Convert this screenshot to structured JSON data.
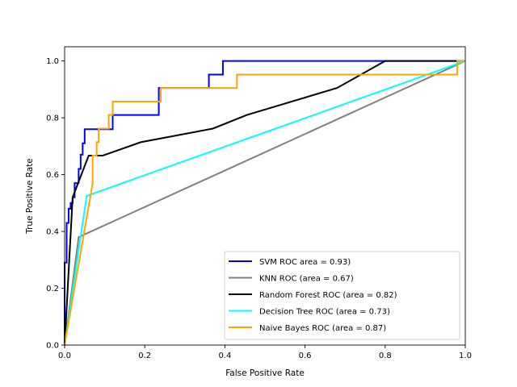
{
  "chart_data": {
    "type": "line",
    "xlabel": "False Positive Rate",
    "ylabel": "True Positive Rate",
    "xlim": [
      0.0,
      1.0
    ],
    "ylim": [
      0.0,
      1.05
    ],
    "xticks": [
      "0.0",
      "0.2",
      "0.4",
      "0.6",
      "0.8",
      "1.0"
    ],
    "yticks": [
      "0.0",
      "0.2",
      "0.4",
      "0.6",
      "0.8",
      "1.0"
    ],
    "grid": false,
    "legend_position": "lower-right",
    "series": [
      {
        "name": "SVM ROC area = 0.93)",
        "color": "#0000ff",
        "x": [
          0.0,
          0.0,
          0.005,
          0.005,
          0.01,
          0.01,
          0.015,
          0.015,
          0.02,
          0.02,
          0.025,
          0.025,
          0.035,
          0.035,
          0.04,
          0.04,
          0.045,
          0.045,
          0.05,
          0.05,
          0.12,
          0.12,
          0.235,
          0.235,
          0.36,
          0.36,
          0.395,
          0.395,
          1.0
        ],
        "y": [
          0.0,
          0.29,
          0.29,
          0.43,
          0.43,
          0.48,
          0.48,
          0.5,
          0.5,
          0.52,
          0.52,
          0.57,
          0.57,
          0.62,
          0.62,
          0.67,
          0.67,
          0.71,
          0.71,
          0.76,
          0.76,
          0.81,
          0.81,
          0.905,
          0.905,
          0.952,
          0.952,
          1.0,
          1.0
        ]
      },
      {
        "name": "KNN ROC (area = 0.67)",
        "color": "#808080",
        "x": [
          0.0,
          0.035,
          1.0
        ],
        "y": [
          0.0,
          0.38,
          1.0
        ]
      },
      {
        "name": "Random Forest ROC  (area = 0.82)",
        "color": "#000000",
        "x": [
          0.0,
          0.02,
          0.06,
          0.095,
          0.19,
          0.37,
          0.455,
          0.68,
          0.8,
          1.0
        ],
        "y": [
          0.0,
          0.52,
          0.667,
          0.667,
          0.714,
          0.762,
          0.81,
          0.905,
          1.0,
          1.0
        ]
      },
      {
        "name": "Decision Tree ROC (area = 0.73)",
        "color": "#00ffff",
        "x": [
          0.0,
          0.055,
          1.0
        ],
        "y": [
          0.0,
          0.525,
          1.0
        ]
      },
      {
        "name": "Naive Bayes ROC (area = 0.87)",
        "color": "#ffa500",
        "x": [
          0.0,
          0.07,
          0.07,
          0.08,
          0.08,
          0.085,
          0.085,
          0.11,
          0.11,
          0.12,
          0.12,
          0.24,
          0.24,
          0.255,
          0.255,
          0.43,
          0.43,
          0.98,
          0.98,
          1.0
        ],
        "y": [
          0.0,
          0.57,
          0.667,
          0.667,
          0.714,
          0.714,
          0.762,
          0.762,
          0.81,
          0.81,
          0.857,
          0.857,
          0.905,
          0.905,
          0.905,
          0.905,
          0.952,
          0.952,
          1.0,
          1.0
        ]
      }
    ]
  }
}
